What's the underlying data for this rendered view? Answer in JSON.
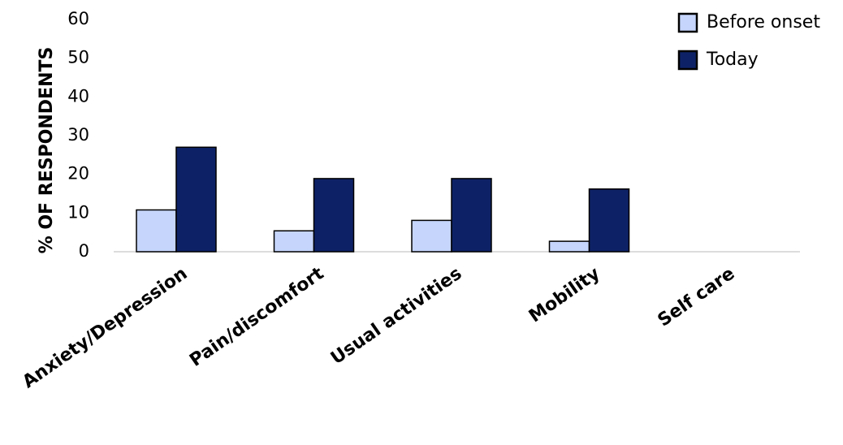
{
  "chart_data": {
    "type": "bar",
    "title": "",
    "xlabel": "",
    "ylabel": "% OF RESPONDENTS",
    "ylim": [
      0,
      60
    ],
    "yticks": [
      0,
      10,
      20,
      30,
      40,
      50,
      60
    ],
    "grid": false,
    "legend_position": "top-right",
    "categories": [
      "Anxiety/Depression",
      "Pain/discomfort",
      "Usual activities",
      "Mobility",
      "Self care"
    ],
    "series": [
      {
        "name": "Before onset",
        "color": "#c5d5fb",
        "values": [
          10.8,
          5.4,
          8.1,
          2.7,
          0
        ]
      },
      {
        "name": "Today",
        "color": "#0d2266",
        "values": [
          27,
          18.9,
          18.9,
          16.2,
          0
        ]
      }
    ]
  }
}
